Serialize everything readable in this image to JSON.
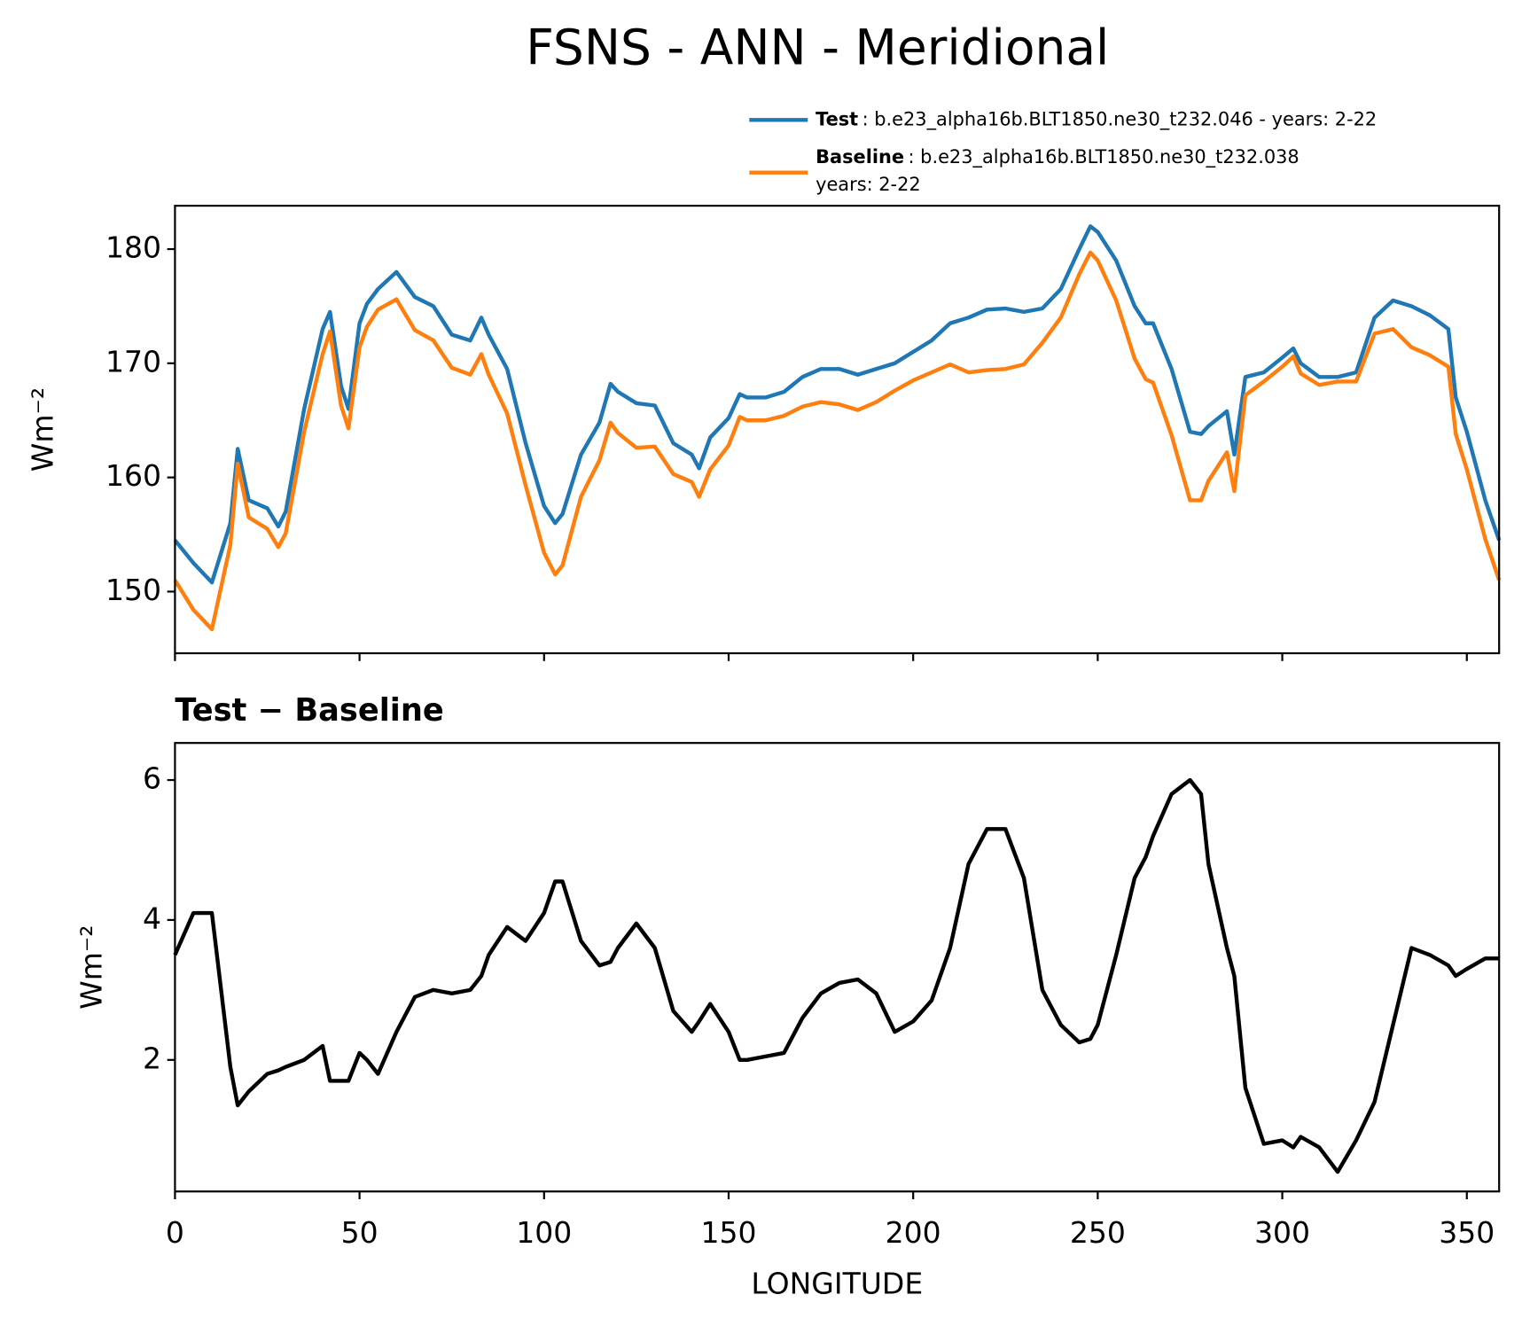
{
  "chart_data": [
    {
      "type": "line",
      "title": "FSNS - ANN - Meridional",
      "ylabel": "Wm⁻²",
      "x": [
        0,
        5,
        10,
        15,
        17,
        20,
        25,
        28,
        30,
        35,
        40,
        42,
        45,
        47,
        50,
        52,
        55,
        60,
        65,
        70,
        75,
        80,
        83,
        85,
        90,
        95,
        100,
        103,
        105,
        110,
        115,
        118,
        120,
        125,
        130,
        135,
        140,
        142,
        145,
        150,
        153,
        155,
        160,
        165,
        170,
        175,
        180,
        185,
        190,
        195,
        200,
        205,
        210,
        215,
        220,
        225,
        230,
        235,
        240,
        245,
        248,
        250,
        255,
        260,
        263,
        265,
        270,
        275,
        278,
        280,
        285,
        287,
        290,
        295,
        300,
        303,
        305,
        310,
        315,
        320,
        325,
        330,
        335,
        340,
        345,
        347,
        350,
        355,
        358.75
      ],
      "series": [
        {
          "name": "Test",
          "description": ": b.e23_alpha16b.BLT1850.ne30_t232.046 - years: 2-22",
          "color": "#1f77b4",
          "values": [
            154.5,
            152.5,
            150.8,
            156,
            162.5,
            158,
            157.3,
            155.7,
            157,
            166,
            173,
            174.5,
            168,
            166,
            173.5,
            175.2,
            176.5,
            178,
            175.8,
            175,
            172.5,
            172,
            174,
            172.5,
            169.5,
            163,
            157.5,
            156,
            156.8,
            162,
            164.8,
            168.2,
            167.5,
            166.5,
            166.3,
            163,
            162,
            160.8,
            163.5,
            165.2,
            167.3,
            167,
            167,
            167.5,
            168.8,
            169.5,
            169.5,
            169,
            169.5,
            170,
            171,
            172,
            173.5,
            174,
            174.7,
            174.8,
            174.5,
            174.8,
            176.5,
            180,
            182,
            181.5,
            179,
            175,
            173.5,
            173.5,
            169.5,
            164,
            163.8,
            164.5,
            165.8,
            162,
            168.8,
            169.2,
            170.5,
            171.3,
            170,
            168.8,
            168.8,
            169.2,
            174,
            175.5,
            175,
            174.2,
            173,
            167,
            164,
            158,
            154.5
          ]
        },
        {
          "name": "Baseline",
          "description": [
            ": b.e23_alpha16b.BLT1850.ne30_t232.038",
            "years: 2-22"
          ],
          "color": "#ff7f0e",
          "values": [
            151.0,
            148.4,
            146.7,
            154.1,
            161.2,
            156.5,
            155.5,
            153.9,
            155.1,
            164.0,
            170.8,
            172.8,
            166.3,
            164.3,
            171.4,
            173.2,
            174.7,
            175.6,
            172.9,
            172.0,
            169.6,
            169.0,
            170.8,
            169.0,
            165.6,
            159.3,
            153.4,
            151.5,
            152.3,
            158.3,
            161.5,
            164.8,
            163.9,
            162.6,
            162.7,
            160.3,
            159.6,
            158.3,
            160.7,
            162.8,
            165.3,
            165.0,
            165.0,
            165.4,
            166.2,
            166.6,
            166.4,
            165.9,
            166.6,
            167.6,
            168.5,
            169.2,
            169.9,
            169.2,
            169.4,
            169.5,
            169.9,
            171.8,
            174.0,
            177.8,
            179.7,
            179.0,
            175.5,
            170.4,
            168.6,
            168.3,
            163.7,
            158.0,
            158.0,
            159.7,
            162.2,
            158.8,
            167.2,
            168.4,
            169.7,
            170.6,
            169.1,
            168.1,
            168.4,
            168.4,
            172.6,
            173.0,
            171.4,
            170.7,
            169.7,
            163.8,
            160.7,
            154.6,
            151.0
          ]
        }
      ],
      "xlim": [
        0,
        358.75
      ],
      "xticks": [
        0,
        50,
        100,
        150,
        200,
        250,
        300,
        350
      ],
      "xtick_labels": false,
      "ylim": [
        144.6,
        183.8
      ],
      "yticks": [
        150,
        160,
        170,
        180
      ]
    },
    {
      "type": "line",
      "title": "Test − Baseline",
      "ylabel": "Wm⁻²",
      "xlabel": "LONGITUDE",
      "x": [
        0,
        5,
        10,
        15,
        17,
        20,
        25,
        28,
        30,
        35,
        40,
        42,
        45,
        47,
        50,
        52,
        55,
        60,
        65,
        70,
        75,
        80,
        83,
        85,
        90,
        95,
        100,
        103,
        105,
        110,
        115,
        118,
        120,
        125,
        130,
        135,
        140,
        142,
        145,
        150,
        153,
        155,
        160,
        165,
        170,
        175,
        180,
        185,
        190,
        195,
        200,
        205,
        210,
        215,
        220,
        225,
        230,
        235,
        240,
        245,
        248,
        250,
        255,
        260,
        263,
        265,
        270,
        275,
        278,
        280,
        285,
        287,
        290,
        295,
        300,
        303,
        305,
        310,
        315,
        320,
        325,
        330,
        335,
        340,
        345,
        347,
        350,
        355,
        358.75
      ],
      "series": [
        {
          "name": "Test − Baseline",
          "color": "#000000",
          "values": [
            3.5,
            4.1,
            4.1,
            1.9,
            1.35,
            1.55,
            1.8,
            1.85,
            1.9,
            2.0,
            2.2,
            1.7,
            1.7,
            1.7,
            2.1,
            2.0,
            1.8,
            2.4,
            2.9,
            3.0,
            2.95,
            3.0,
            3.2,
            3.5,
            3.9,
            3.7,
            4.1,
            4.55,
            4.55,
            3.7,
            3.35,
            3.4,
            3.6,
            3.95,
            3.6,
            2.7,
            2.4,
            2.55,
            2.8,
            2.4,
            2.0,
            2.0,
            2.05,
            2.1,
            2.6,
            2.95,
            3.1,
            3.15,
            2.95,
            2.4,
            2.55,
            2.85,
            3.6,
            4.8,
            5.3,
            5.3,
            4.6,
            3.0,
            2.5,
            2.25,
            2.3,
            2.5,
            3.5,
            4.6,
            4.9,
            5.2,
            5.8,
            6.0,
            5.8,
            4.8,
            3.6,
            3.2,
            1.6,
            0.8,
            0.85,
            0.75,
            0.9,
            0.75,
            0.4,
            0.85,
            1.4,
            2.5,
            3.6,
            3.5,
            3.35,
            3.2,
            3.3,
            3.45,
            3.45
          ]
        }
      ],
      "xlim": [
        0,
        358.75
      ],
      "xticks": [
        0,
        50,
        100,
        150,
        200,
        250,
        300,
        350
      ],
      "ylim": [
        0.12,
        6.53
      ],
      "yticks": [
        2,
        4,
        6
      ]
    }
  ]
}
